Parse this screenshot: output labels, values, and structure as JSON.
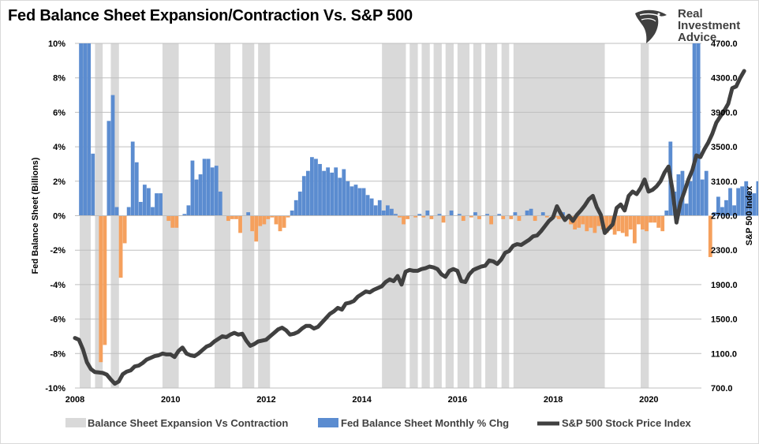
{
  "title": "Fed Balance Sheet Expansion/Contraction Vs. S&P 500",
  "logo": {
    "line1": "Real",
    "line2": "Investment",
    "line3": "Advice"
  },
  "colors": {
    "bars_pos": "#5b8cd0",
    "bars_neg": "#f5a05d",
    "shade": "#d9d9d9",
    "line": "#404040"
  },
  "chart_data": {
    "type": "bar+line",
    "ylabel": "Fed Balance Sheet (Billions)",
    "y2label": "S&P 500 Index",
    "ylim": [
      -10,
      10
    ],
    "y2lim": [
      700,
      4700
    ],
    "yticks": [
      "10%",
      "8%",
      "6%",
      "4%",
      "2%",
      "0%",
      "-2%",
      "-4%",
      "-6%",
      "-8%",
      "-10%"
    ],
    "y2ticks": [
      "4700.0",
      "4300.0",
      "3900.0",
      "3500.0",
      "3100.0",
      "2700.0",
      "2300.0",
      "1900.0",
      "1500.0",
      "1100.0",
      "700.0"
    ],
    "xticks": [
      "2008",
      "2010",
      "2012",
      "2014",
      "2016",
      "2018",
      "2020"
    ],
    "xrange": [
      2008.0,
      2021.1
    ],
    "legend": [
      {
        "label": "Balance Sheet Expansion Vs Contraction"
      },
      {
        "label": "Fed Balance Sheet Monthly % Chg"
      },
      {
        "label": "S&P 500 Stock Price Index"
      }
    ],
    "shaded_periods": [
      [
        2008.1,
        2008.33
      ],
      [
        2008.42,
        2008.58
      ],
      [
        2008.75,
        2008.92
      ],
      [
        2009.83,
        2010.17
      ],
      [
        2010.92,
        2011.25
      ],
      [
        2011.5,
        2011.75
      ],
      [
        2011.83,
        2012.08
      ],
      [
        2014.42,
        2014.92
      ],
      [
        2015.0,
        2015.17
      ],
      [
        2015.25,
        2015.42
      ],
      [
        2015.5,
        2015.67
      ],
      [
        2015.75,
        2015.92
      ],
      [
        2016.0,
        2016.25
      ],
      [
        2016.33,
        2016.5
      ],
      [
        2016.58,
        2016.83
      ],
      [
        2016.92,
        2017.08
      ],
      [
        2017.17,
        2019.08
      ],
      [
        2019.83,
        2020.0
      ]
    ],
    "fed_monthly_pct_chg": {
      "start": 2008.125,
      "step": 0.0833,
      "values": [
        10,
        10,
        10,
        3.6,
        0,
        -8.5,
        -7.5,
        5.5,
        7,
        0.5,
        -3.6,
        -1.6,
        0.5,
        4.3,
        3.1,
        0.8,
        1.8,
        1.6,
        0.5,
        1.3,
        1.3,
        0,
        -0.3,
        -0.7,
        -0.7,
        0,
        0.1,
        0.6,
        3.2,
        2.1,
        2.4,
        3.3,
        3.3,
        2.8,
        2.9,
        1.4,
        0,
        -0.3,
        -0.2,
        -0.2,
        -1.0,
        0,
        0.2,
        -0.9,
        -1.5,
        -0.6,
        -0.5,
        -0.2,
        -0.1,
        -0.5,
        -0.9,
        -0.7,
        -0.1,
        0.3,
        0.9,
        1.4,
        2.3,
        2.6,
        3.4,
        3.3,
        3.0,
        2.6,
        2.8,
        2.5,
        2.8,
        2.2,
        2.7,
        2.0,
        1.7,
        1.8,
        1.6,
        1.6,
        1.2,
        1.0,
        0.6,
        0.9,
        0.3,
        0.6,
        0.4,
        0.1,
        -0.1,
        -0.5,
        -0.2,
        0,
        -0.1,
        0.1,
        -0.1,
        0.3,
        -0.2,
        0,
        0.1,
        -0.4,
        0,
        0.3,
        0,
        0.1,
        -0.3,
        0,
        -0.1,
        0.2,
        -0.2,
        0,
        0.1,
        -0.5,
        0,
        0.1,
        -0.2,
        0,
        -0.2,
        0.2,
        -0.3,
        0,
        0.3,
        0.4,
        -0.3,
        0,
        0.2,
        -0.1,
        0,
        -0.1,
        -0.2,
        0.2,
        0,
        -0.5,
        -0.8,
        -0.7,
        -0.5,
        -0.9,
        -0.7,
        -1.0,
        -0.6,
        -0.8,
        -1.0,
        -0.8,
        -1.1,
        -0.9,
        -1.0,
        -1.2,
        -0.8,
        -1.6,
        -0.5,
        -0.8,
        -0.9,
        -0.4,
        -0.4,
        -0.7,
        -0.9,
        0.3,
        4.3,
        1.4,
        2.4,
        2.6,
        0.7,
        2.0,
        10,
        10,
        2.1,
        2.6,
        -2.4,
        0.2,
        1.1,
        0.5,
        0.9,
        1.6,
        0.6,
        1.6,
        1.7,
        2.0,
        1.4,
        1.3,
        2.0,
        2.0,
        0.5
      ]
    },
    "sp500": {
      "start": 2008.0,
      "step": 0.0833,
      "values": [
        1280,
        1260,
        1150,
        1000,
        920,
        885,
        880,
        875,
        855,
        800,
        750,
        775,
        860,
        890,
        905,
        950,
        960,
        990,
        1030,
        1050,
        1070,
        1080,
        1100,
        1090,
        1090,
        1060,
        1130,
        1170,
        1100,
        1080,
        1070,
        1100,
        1140,
        1180,
        1200,
        1240,
        1270,
        1300,
        1290,
        1320,
        1340,
        1320,
        1330,
        1250,
        1190,
        1210,
        1240,
        1250,
        1260,
        1300,
        1340,
        1380,
        1400,
        1370,
        1320,
        1330,
        1350,
        1390,
        1420,
        1420,
        1390,
        1410,
        1460,
        1510,
        1560,
        1590,
        1630,
        1610,
        1680,
        1690,
        1710,
        1760,
        1790,
        1820,
        1810,
        1840,
        1860,
        1880,
        1930,
        1960,
        1940,
        2000,
        1900,
        2050,
        2070,
        2060,
        2060,
        2080,
        2090,
        2110,
        2100,
        2080,
        2020,
        1990,
        2060,
        2080,
        2060,
        1940,
        1930,
        2020,
        2070,
        2090,
        2110,
        2120,
        2180,
        2170,
        2140,
        2190,
        2270,
        2290,
        2350,
        2370,
        2360,
        2390,
        2420,
        2460,
        2470,
        2520,
        2580,
        2640,
        2680,
        2810,
        2720,
        2650,
        2700,
        2640,
        2710,
        2760,
        2820,
        2890,
        2930,
        2800,
        2710,
        2500,
        2550,
        2600,
        2790,
        2830,
        2760,
        2930,
        2980,
        2950,
        3020,
        3120,
        2980,
        3000,
        3040,
        3100,
        3200,
        3270,
        3000,
        2620,
        2850,
        2980,
        3120,
        3230,
        3400,
        3380,
        3470,
        3550,
        3650,
        3780,
        3850,
        3920,
        4000,
        4180,
        4200,
        4300,
        4380
      ]
    }
  }
}
